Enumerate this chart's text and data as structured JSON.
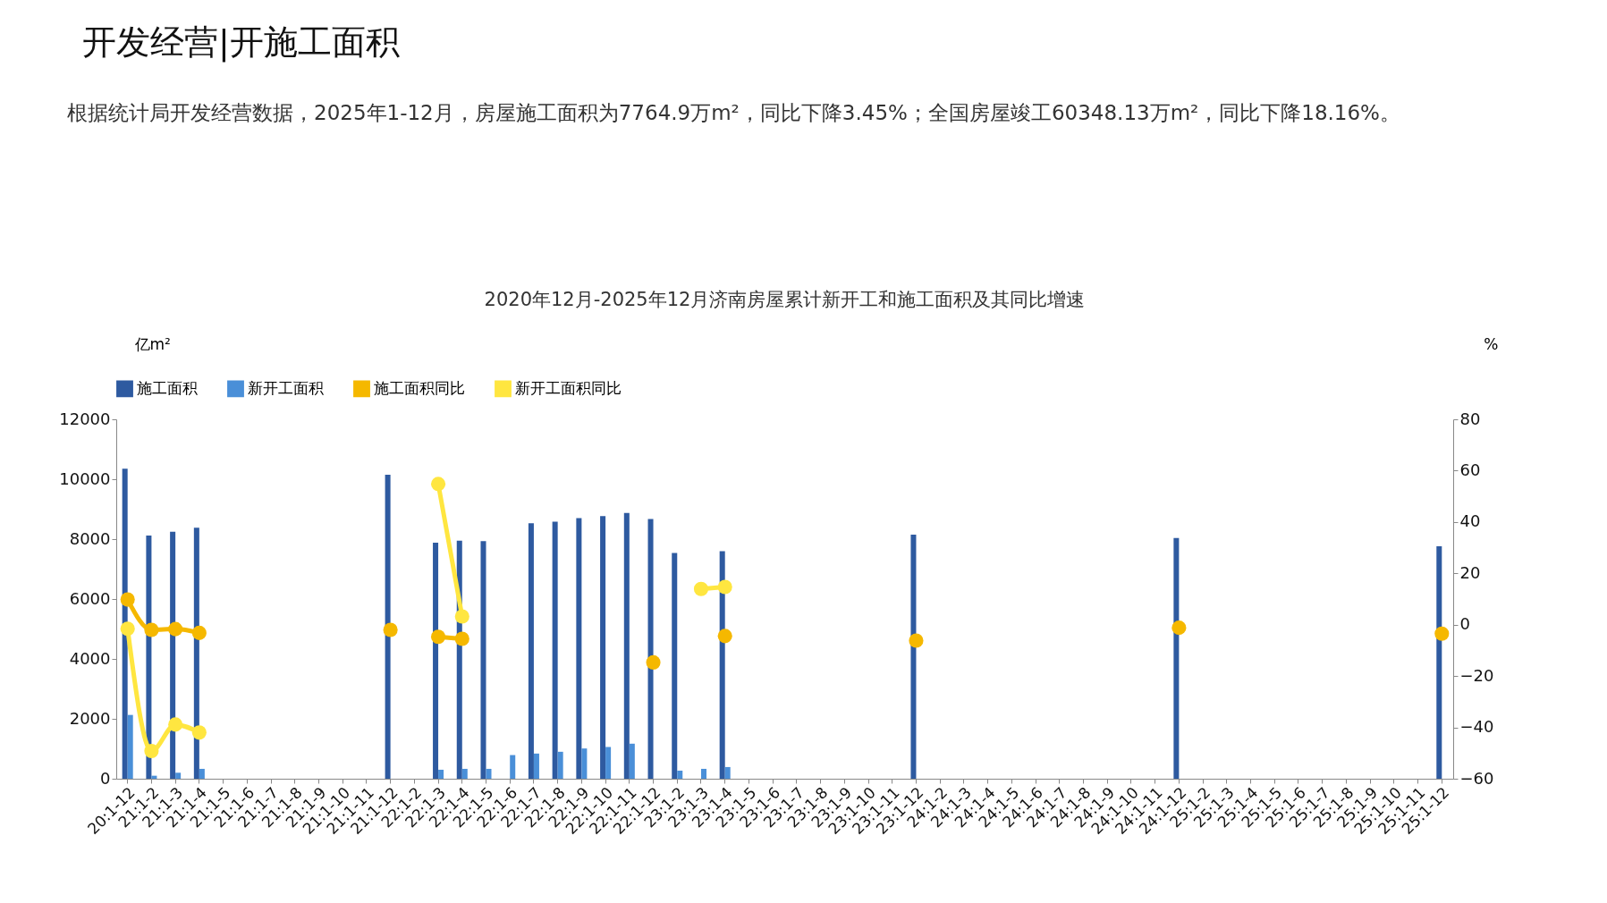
{
  "chart_data": {
    "type": "bar",
    "title": "2020年12月-2025年12月济南房屋累计新开工和施工面积及其同比增速",
    "annotations": [
      "开发经营|开施工面积",
      "根据统计局开发经营数据，2025年1-12月，房屋施工面积为7764.9万m²，同比下降3.45%；全国房屋竣工60348.13万m²，同比下降18.16%。"
    ],
    "ylabel": "亿m²",
    "y2label": "%",
    "categories": [
      "20:1-12",
      "21:1-2",
      "21:1-3",
      "21:1-4",
      "21:1-5",
      "21:1-6",
      "21:1-7",
      "21:1-8",
      "21:1-9",
      "21:1-10",
      "21:1-11",
      "21:1-12",
      "22:1-2",
      "22:1-3",
      "22:1-4",
      "22:1-5",
      "22:1-6",
      "22:1-7",
      "22:1-8",
      "22:1-9",
      "22:1-10",
      "22:1-11",
      "22:1-12",
      "23:1-2",
      "23:1-3",
      "23:1-4",
      "23:1-5",
      "23:1-6",
      "23:1-7",
      "23:1-8",
      "23:1-9",
      "23:1-10",
      "23:1-11",
      "23:1-12",
      "24:1-2",
      "24:1-3",
      "24:1-4",
      "24:1-5",
      "24:1-6",
      "24:1-7",
      "24:1-8",
      "24:1-9",
      "24:1-10",
      "24:1-11",
      "24:1-12",
      "25:1-2",
      "25:1-3",
      "25:1-4",
      "25:1-5",
      "25:1-6",
      "25:1-7",
      "25:1-8",
      "25:1-9",
      "25:1-10",
      "25:1-11",
      "25:1-12"
    ],
    "series": [
      {
        "name": "施工面积",
        "color": "#2e5aa0",
        "values": [
          10350,
          8120,
          8250,
          8380,
          null,
          null,
          null,
          null,
          null,
          null,
          null,
          10150,
          null,
          7880,
          7950,
          7930,
          null,
          8530,
          8580,
          8700,
          8770,
          8870,
          8670,
          7540,
          null,
          7600,
          null,
          null,
          null,
          null,
          null,
          null,
          null,
          8150,
          null,
          null,
          null,
          null,
          null,
          null,
          null,
          null,
          null,
          null,
          8040,
          null,
          null,
          null,
          null,
          null,
          null,
          null,
          null,
          null,
          null,
          7760
        ]
      },
      {
        "name": "新开工面积",
        "color": "#4a8fd8",
        "values": [
          2130,
          100,
          200,
          330,
          null,
          null,
          null,
          null,
          null,
          null,
          null,
          null,
          null,
          300,
          330,
          330,
          790,
          840,
          900,
          1010,
          1060,
          1170,
          null,
          270,
          330,
          390,
          null,
          null,
          null,
          null,
          null,
          null,
          null,
          null,
          null,
          null,
          null,
          null,
          null,
          null,
          null,
          null,
          null,
          null,
          null,
          null,
          null,
          null,
          null,
          null,
          null,
          null,
          null,
          null,
          null,
          null
        ]
      },
      {
        "name": "施工面积同比",
        "type": "line",
        "axis": "y2",
        "color": "#f5b800",
        "values": [
          9.8,
          -2,
          -1.7,
          -3.2,
          null,
          null,
          null,
          null,
          null,
          null,
          null,
          -2,
          null,
          -4.7,
          -5.5,
          null,
          null,
          null,
          null,
          null,
          null,
          null,
          -14.7,
          null,
          null,
          -4.4,
          null,
          null,
          null,
          null,
          null,
          null,
          null,
          -6.2,
          null,
          null,
          null,
          null,
          null,
          null,
          null,
          null,
          null,
          null,
          -1.2,
          null,
          null,
          null,
          null,
          null,
          null,
          null,
          null,
          null,
          null,
          -3.5
        ]
      },
      {
        "name": "新开工面积同比",
        "type": "line",
        "axis": "y2",
        "color": "#ffe640",
        "values": [
          -1.6,
          -49.2,
          -38.9,
          -42,
          null,
          null,
          null,
          null,
          null,
          null,
          null,
          null,
          null,
          54.8,
          3.2,
          null,
          null,
          null,
          null,
          null,
          null,
          null,
          null,
          null,
          13.9,
          14.7,
          null,
          null,
          null,
          null,
          null,
          null,
          null,
          null,
          null,
          null,
          null,
          null,
          null,
          null,
          null,
          null,
          null,
          null,
          null,
          null,
          null,
          null,
          null,
          null,
          null,
          null,
          null,
          null,
          null,
          null
        ]
      }
    ],
    "ylim": [
      0,
      12000
    ],
    "yticks": [
      0,
      2000,
      4000,
      6000,
      8000,
      10000,
      12000
    ],
    "y2lim": [
      -60,
      80
    ],
    "y2ticks": [
      -60,
      -40,
      -20,
      0,
      20,
      40,
      60,
      80
    ],
    "legend": "top",
    "marker": "circle",
    "line_style": "solid"
  }
}
